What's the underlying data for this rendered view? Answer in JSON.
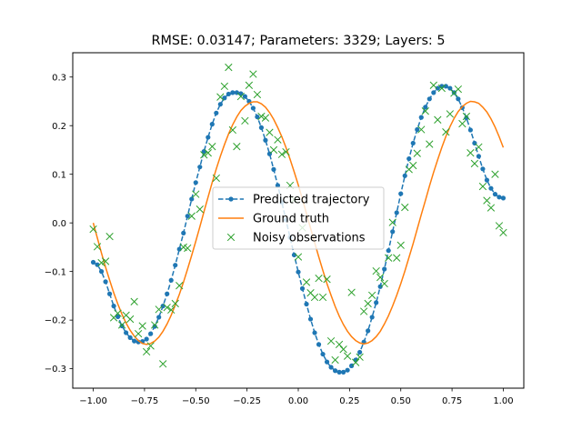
{
  "chart_data": {
    "type": "line",
    "title": "RMSE: 0.03147; Parameters: 3329; Layers: 5",
    "xlabel": "",
    "ylabel": "",
    "xlim": [
      -1.1,
      1.1
    ],
    "ylim": [
      -0.34,
      0.35
    ],
    "grid": false,
    "legend_position": "center",
    "x_ticks": [
      {
        "value": -1.0,
        "label": "−1.00"
      },
      {
        "value": -0.75,
        "label": "−0.75"
      },
      {
        "value": -0.5,
        "label": "−0.50"
      },
      {
        "value": -0.25,
        "label": "−0.25"
      },
      {
        "value": 0.0,
        "label": "0.00"
      },
      {
        "value": 0.25,
        "label": "0.25"
      },
      {
        "value": 0.5,
        "label": "0.50"
      },
      {
        "value": 0.75,
        "label": "0.75"
      },
      {
        "value": 1.0,
        "label": "1.00"
      }
    ],
    "y_ticks": [
      {
        "value": -0.3,
        "label": "−0.3"
      },
      {
        "value": -0.2,
        "label": "−0.2"
      },
      {
        "value": -0.1,
        "label": "−0.1"
      },
      {
        "value": 0.0,
        "label": "0.0"
      },
      {
        "value": 0.1,
        "label": "0.1"
      },
      {
        "value": 0.2,
        "label": "0.2"
      },
      {
        "value": 0.3,
        "label": "0.3"
      }
    ],
    "series": [
      {
        "name": "Predicted trajectory",
        "style": "dashed-line-dots",
        "color": "#1f77b4",
        "x": [
          -1.0,
          -0.98,
          -0.96,
          -0.94,
          -0.92,
          -0.9,
          -0.88,
          -0.86,
          -0.84,
          -0.82,
          -0.8,
          -0.78,
          -0.76,
          -0.74,
          -0.72,
          -0.7,
          -0.68,
          -0.66,
          -0.64,
          -0.62,
          -0.6,
          -0.58,
          -0.56,
          -0.54,
          -0.52,
          -0.5,
          -0.48,
          -0.46,
          -0.44,
          -0.42,
          -0.4,
          -0.38,
          -0.36,
          -0.34,
          -0.32,
          -0.3,
          -0.28,
          -0.26,
          -0.24,
          -0.22,
          -0.2,
          -0.18,
          -0.16,
          -0.14,
          -0.12,
          -0.1,
          -0.08,
          -0.06,
          -0.04,
          -0.02,
          0.0,
          0.02,
          0.04,
          0.06,
          0.08,
          0.1,
          0.12,
          0.14,
          0.16,
          0.18,
          0.2,
          0.22,
          0.24,
          0.26,
          0.28,
          0.3,
          0.32,
          0.34,
          0.36,
          0.38,
          0.4,
          0.42,
          0.44,
          0.46,
          0.48,
          0.5,
          0.52,
          0.54,
          0.56,
          0.58,
          0.6,
          0.62,
          0.64,
          0.66,
          0.68,
          0.7,
          0.72,
          0.74,
          0.76,
          0.78,
          0.8,
          0.82,
          0.84,
          0.86,
          0.88,
          0.9,
          0.92,
          0.94,
          0.96,
          0.98,
          1.0
        ],
        "y": [
          -0.081,
          -0.086,
          -0.1,
          -0.121,
          -0.146,
          -0.171,
          -0.193,
          -0.212,
          -0.226,
          -0.236,
          -0.243,
          -0.245,
          -0.244,
          -0.239,
          -0.228,
          -0.213,
          -0.194,
          -0.171,
          -0.146,
          -0.118,
          -0.087,
          -0.054,
          -0.021,
          0.014,
          0.049,
          0.083,
          0.115,
          0.147,
          0.176,
          0.203,
          0.226,
          0.244,
          0.257,
          0.265,
          0.268,
          0.268,
          0.266,
          0.26,
          0.25,
          0.236,
          0.218,
          0.196,
          0.17,
          0.142,
          0.11,
          0.077,
          0.042,
          0.006,
          -0.03,
          -0.066,
          -0.101,
          -0.135,
          -0.167,
          -0.198,
          -0.226,
          -0.25,
          -0.27,
          -0.286,
          -0.297,
          -0.304,
          -0.307,
          -0.307,
          -0.303,
          -0.294,
          -0.282,
          -0.266,
          -0.245,
          -0.222,
          -0.194,
          -0.164,
          -0.131,
          -0.095,
          -0.057,
          -0.018,
          0.021,
          0.06,
          0.097,
          0.132,
          0.164,
          0.192,
          0.217,
          0.238,
          0.255,
          0.268,
          0.277,
          0.281,
          0.281,
          0.277,
          0.268,
          0.255,
          0.237,
          0.216,
          0.191,
          0.164,
          0.137,
          0.111,
          0.088,
          0.071,
          0.059,
          0.053,
          0.051
        ]
      },
      {
        "name": "Ground truth",
        "style": "solid-line",
        "color": "#ff7f0e",
        "x": [
          -1.0,
          -0.98,
          -0.96,
          -0.94,
          -0.92,
          -0.9,
          -0.88,
          -0.86,
          -0.84,
          -0.82,
          -0.8,
          -0.78,
          -0.76,
          -0.74,
          -0.72,
          -0.7,
          -0.68,
          -0.66,
          -0.64,
          -0.62,
          -0.6,
          -0.58,
          -0.56,
          -0.54,
          -0.52,
          -0.5,
          -0.48,
          -0.46,
          -0.44,
          -0.42,
          -0.4,
          -0.38,
          -0.36,
          -0.34,
          -0.32,
          -0.3,
          -0.28,
          -0.26,
          -0.24,
          -0.22,
          -0.2,
          -0.18,
          -0.16,
          -0.14,
          -0.12,
          -0.1,
          -0.08,
          -0.06,
          -0.04,
          -0.02,
          0.0,
          0.02,
          0.04,
          0.06,
          0.08,
          0.1,
          0.12,
          0.14,
          0.16,
          0.18,
          0.2,
          0.22,
          0.24,
          0.26,
          0.28,
          0.3,
          0.32,
          0.34,
          0.36,
          0.38,
          0.4,
          0.42,
          0.44,
          0.46,
          0.48,
          0.5,
          0.52,
          0.54,
          0.56,
          0.58,
          0.6,
          0.62,
          0.64,
          0.66,
          0.68,
          0.7,
          0.72,
          0.74,
          0.76,
          0.78,
          0.8,
          0.82,
          0.84,
          0.86,
          0.88,
          0.9,
          0.92,
          0.94,
          0.96,
          0.98,
          1.0
        ],
        "y": [
          0.0,
          -0.031,
          -0.062,
          -0.091,
          -0.118,
          -0.144,
          -0.167,
          -0.188,
          -0.206,
          -0.221,
          -0.233,
          -0.242,
          -0.248,
          -0.25,
          -0.248,
          -0.243,
          -0.235,
          -0.223,
          -0.208,
          -0.19,
          -0.169,
          -0.147,
          -0.122,
          -0.095,
          -0.067,
          -0.038,
          -0.008,
          0.023,
          0.053,
          0.083,
          0.111,
          0.137,
          0.161,
          0.183,
          0.202,
          0.218,
          0.231,
          0.24,
          0.246,
          0.249,
          0.249,
          0.245,
          0.238,
          0.227,
          0.213,
          0.196,
          0.177,
          0.155,
          0.131,
          0.105,
          0.078,
          0.049,
          0.019,
          -0.011,
          -0.041,
          -0.07,
          -0.098,
          -0.125,
          -0.149,
          -0.172,
          -0.192,
          -0.209,
          -0.223,
          -0.234,
          -0.242,
          -0.247,
          -0.249,
          -0.247,
          -0.242,
          -0.234,
          -0.223,
          -0.208,
          -0.191,
          -0.171,
          -0.149,
          -0.125,
          -0.099,
          -0.071,
          -0.043,
          -0.013,
          0.017,
          0.046,
          0.076,
          0.104,
          0.13,
          0.155,
          0.178,
          0.198,
          0.215,
          0.229,
          0.239,
          0.246,
          0.25,
          0.249,
          0.246,
          0.238,
          0.228,
          0.214,
          0.197,
          0.177,
          0.155
        ]
      },
      {
        "name": "Noisy observations",
        "style": "x-markers",
        "color": "#2ca02c",
        "x": [
          -1.0,
          -0.98,
          -0.96,
          -0.94,
          -0.92,
          -0.9,
          -0.88,
          -0.86,
          -0.84,
          -0.82,
          -0.8,
          -0.78,
          -0.76,
          -0.74,
          -0.72,
          -0.7,
          -0.68,
          -0.66,
          -0.64,
          -0.62,
          -0.6,
          -0.58,
          -0.56,
          -0.54,
          -0.52,
          -0.5,
          -0.48,
          -0.46,
          -0.44,
          -0.42,
          -0.4,
          -0.38,
          -0.36,
          -0.34,
          -0.32,
          -0.3,
          -0.28,
          -0.26,
          -0.24,
          -0.22,
          -0.2,
          -0.18,
          -0.16,
          -0.14,
          -0.12,
          -0.1,
          -0.08,
          -0.06,
          -0.04,
          -0.02,
          0.0,
          0.02,
          0.04,
          0.06,
          0.08,
          0.1,
          0.12,
          0.14,
          0.16,
          0.18,
          0.2,
          0.22,
          0.24,
          0.26,
          0.28,
          0.3,
          0.32,
          0.34,
          0.36,
          0.38,
          0.4,
          0.42,
          0.44,
          0.46,
          0.48,
          0.5,
          0.52,
          0.54,
          0.56,
          0.58,
          0.6,
          0.62,
          0.64,
          0.66,
          0.68,
          0.7,
          0.72,
          0.74,
          0.76,
          0.78,
          0.8,
          0.82,
          0.84,
          0.86,
          0.88,
          0.9,
          0.92,
          0.94,
          0.96,
          0.98,
          1.0
        ],
        "y": [
          -0.013,
          -0.049,
          -0.082,
          -0.079,
          -0.028,
          -0.195,
          -0.186,
          -0.21,
          -0.19,
          -0.198,
          -0.162,
          -0.228,
          -0.212,
          -0.265,
          -0.253,
          -0.21,
          -0.178,
          -0.29,
          -0.174,
          -0.179,
          -0.166,
          -0.129,
          -0.05,
          -0.052,
          0.014,
          0.059,
          0.028,
          0.14,
          0.144,
          0.157,
          0.092,
          0.259,
          0.281,
          0.32,
          0.191,
          0.157,
          0.26,
          0.21,
          0.283,
          0.306,
          0.264,
          0.219,
          0.216,
          0.186,
          0.15,
          0.171,
          0.141,
          0.146,
          0.077,
          0.048,
          -0.07,
          -0.01,
          -0.122,
          -0.144,
          -0.153,
          -0.114,
          -0.153,
          -0.116,
          -0.243,
          -0.282,
          -0.25,
          -0.26,
          -0.274,
          -0.143,
          -0.287,
          -0.276,
          -0.182,
          -0.166,
          -0.149,
          -0.099,
          -0.112,
          -0.125,
          -0.072,
          0.001,
          -0.072,
          -0.046,
          0.032,
          0.11,
          0.118,
          0.143,
          0.192,
          0.23,
          0.162,
          0.283,
          0.212,
          0.277,
          0.187,
          0.224,
          0.267,
          0.275,
          0.204,
          0.219,
          0.144,
          0.122,
          0.156,
          0.075,
          0.046,
          0.031,
          0.1,
          -0.006,
          -0.02
        ]
      }
    ]
  }
}
